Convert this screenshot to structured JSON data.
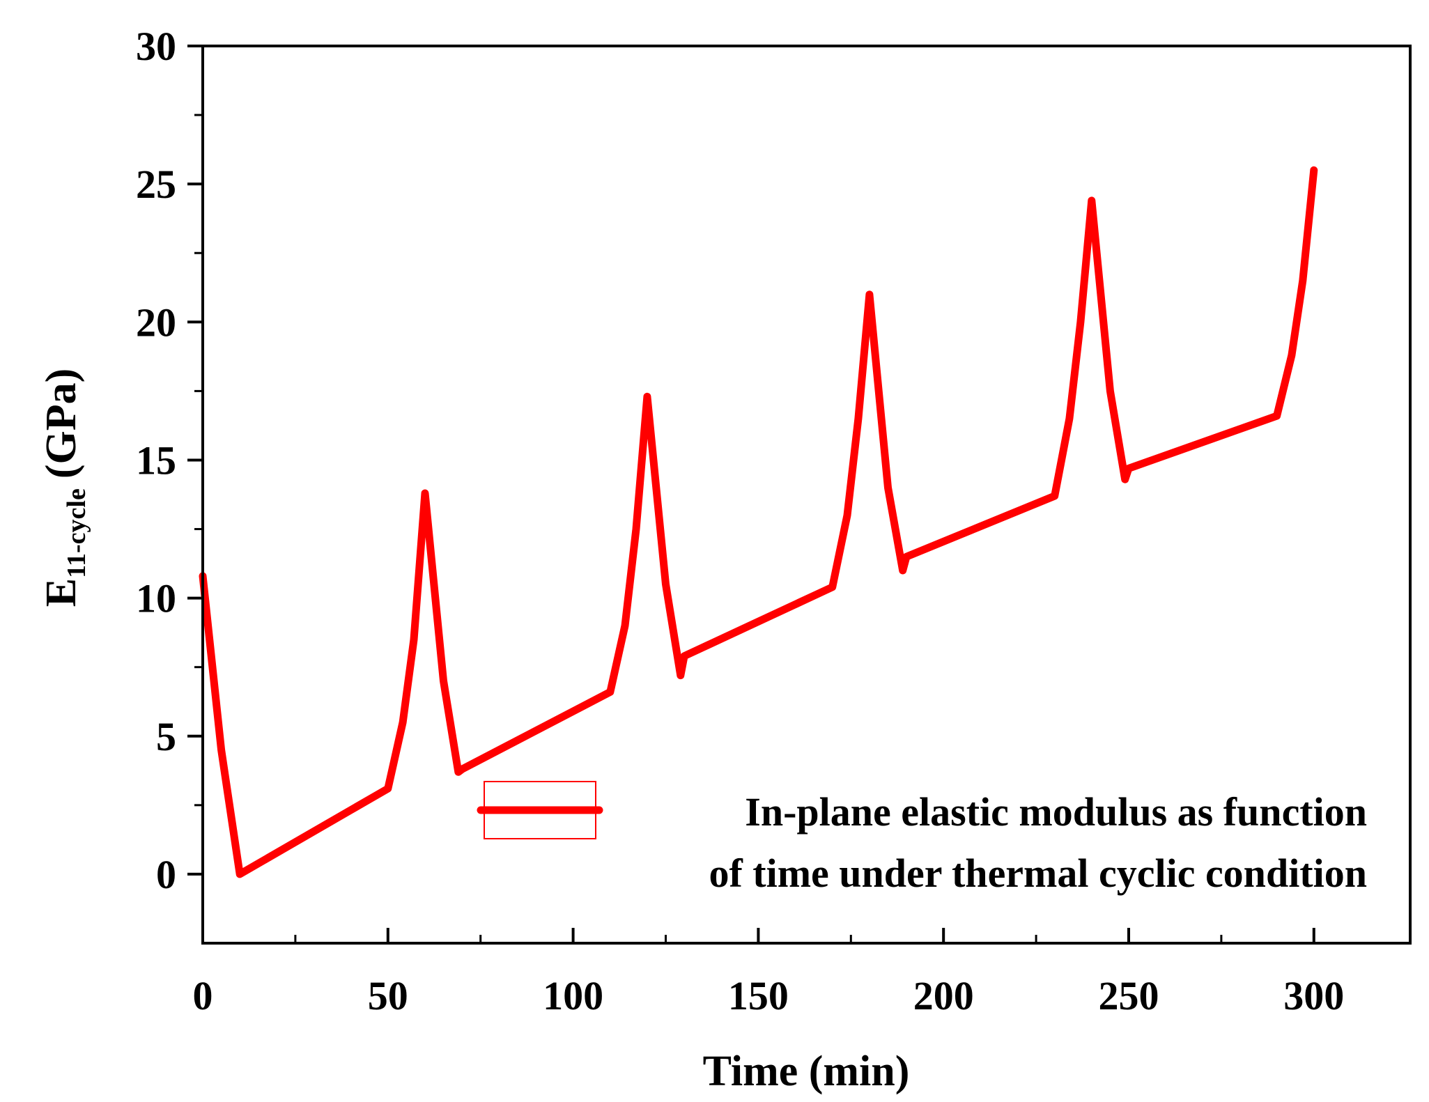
{
  "chart_data": {
    "type": "line",
    "title": "",
    "xlabel": "Time (min)",
    "ylabel": {
      "main": "E",
      "subscript": "11-cycle",
      "unit": "(GPa)"
    },
    "xlim": [
      0,
      326
    ],
    "ylim": [
      -2.5,
      30
    ],
    "x_ticks": [
      0,
      50,
      100,
      150,
      200,
      250,
      300
    ],
    "x_tick_labels": [
      "0",
      "50",
      "100",
      "150",
      "200",
      "250",
      "300"
    ],
    "y_ticks": [
      0,
      5,
      10,
      15,
      20,
      25,
      30
    ],
    "y_tick_labels": [
      "0",
      "5",
      "10",
      "15",
      "20",
      "25",
      "30"
    ],
    "grid": false,
    "legend": {
      "position": "bottom-right",
      "lines": [
        "In-plane elastic modulus as function",
        "of time under thermal cyclic condition"
      ]
    },
    "series": [
      {
        "name": "In-plane elastic modulus as function of time under thermal cyclic condition",
        "color": "#ff0000",
        "x": [
          0,
          5,
          10,
          50,
          54,
          57,
          60,
          65,
          69,
          70,
          110,
          114,
          117,
          120,
          125,
          129,
          130,
          170,
          174,
          177,
          180,
          185,
          189,
          190,
          230,
          234,
          237,
          240,
          245,
          249,
          250,
          290,
          294,
          297,
          300
        ],
        "y": [
          10.8,
          4.5,
          0.0,
          3.1,
          5.5,
          8.5,
          13.8,
          7.0,
          3.7,
          3.8,
          6.6,
          9.0,
          12.5,
          17.3,
          10.5,
          7.2,
          7.9,
          10.4,
          13.0,
          16.5,
          21.0,
          14.0,
          11.0,
          11.5,
          13.7,
          16.5,
          20.0,
          24.4,
          17.5,
          14.3,
          14.7,
          16.6,
          18.8,
          21.5,
          25.5
        ]
      }
    ]
  }
}
